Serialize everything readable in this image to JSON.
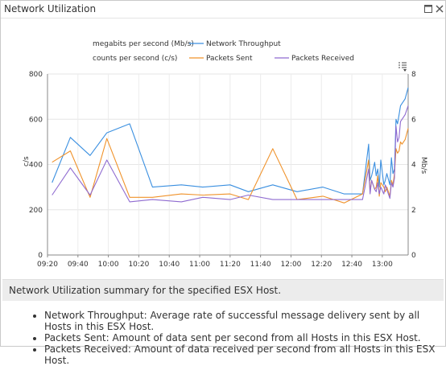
{
  "window": {
    "title": "Network Utilization",
    "icons": [
      "maximize-icon",
      "close-icon"
    ]
  },
  "chart_data": {
    "type": "line",
    "legend": [
      {
        "label": "megabits per second (Mb/s)",
        "series": "Network Throughput",
        "color": "#3a8fe0"
      },
      {
        "label": "counts per second (c/s)",
        "series": "Packets Sent",
        "color": "#f0922a"
      },
      {
        "label": "",
        "series": "Packets Received",
        "color": "#8f6bd0"
      }
    ],
    "ylabel_left": "c/s",
    "ylabel_right": "Mb/s",
    "ylim_left": [
      0,
      800
    ],
    "ylim_right": [
      0,
      8
    ],
    "yticks_left": [
      "0",
      "200",
      "400",
      "600",
      "800"
    ],
    "yticks_right": [
      "0",
      "2",
      "4",
      "6",
      "8"
    ],
    "xticks": [
      "09:20",
      "09:40",
      "10:00",
      "10:20",
      "10:40",
      "11:00",
      "11:20",
      "11:40",
      "12:00",
      "12:20",
      "12:40",
      "13:00"
    ],
    "x_range_minutes": [
      0,
      237
    ],
    "series": [
      {
        "name": "Network Throughput",
        "axis": "right",
        "color": "#3a8fe0",
        "x": [
          3,
          15,
          28,
          39,
          54,
          69,
          88,
          102,
          120,
          132,
          148,
          164,
          181,
          195,
          207,
          211,
          212,
          213,
          215,
          216,
          217,
          218,
          219,
          221,
          222,
          223,
          225,
          226,
          227,
          228,
          229,
          230,
          231,
          232,
          233,
          235,
          237
        ],
        "y": [
          3.2,
          5.2,
          4.4,
          5.4,
          5.8,
          3.0,
          3.1,
          3.0,
          3.1,
          2.8,
          3.1,
          2.8,
          3.0,
          2.7,
          2.7,
          4.9,
          3.3,
          3.5,
          4.1,
          3.5,
          3.8,
          3.0,
          4.2,
          3.1,
          3.3,
          3.6,
          3.1,
          4.3,
          3.6,
          3.8,
          6.0,
          5.8,
          6.2,
          6.6,
          6.7,
          6.9,
          7.4
        ]
      },
      {
        "name": "Packets Sent",
        "axis": "left",
        "color": "#f0922a",
        "x": [
          3,
          15,
          28,
          39,
          54,
          69,
          88,
          102,
          120,
          132,
          148,
          164,
          181,
          195,
          207,
          211,
          212,
          213,
          215,
          216,
          217,
          218,
          219,
          221,
          222,
          223,
          225,
          226,
          227,
          228,
          229,
          230,
          231,
          232,
          233,
          235,
          237
        ],
        "y": [
          410,
          460,
          255,
          515,
          255,
          255,
          270,
          265,
          270,
          245,
          470,
          245,
          260,
          230,
          270,
          420,
          280,
          330,
          290,
          300,
          350,
          260,
          320,
          300,
          280,
          300,
          260,
          330,
          310,
          360,
          470,
          450,
          460,
          500,
          490,
          510,
          560
        ]
      },
      {
        "name": "Packets Received",
        "axis": "left",
        "color": "#8f6bd0",
        "x": [
          3,
          15,
          28,
          39,
          54,
          69,
          88,
          102,
          120,
          132,
          148,
          164,
          181,
          195,
          207,
          211,
          212,
          213,
          215,
          216,
          217,
          218,
          219,
          221,
          222,
          223,
          225,
          226,
          227,
          228,
          229,
          230,
          231,
          232,
          233,
          235,
          237
        ],
        "y": [
          265,
          385,
          265,
          420,
          235,
          245,
          235,
          255,
          245,
          265,
          245,
          245,
          245,
          245,
          245,
          380,
          270,
          330,
          290,
          280,
          320,
          270,
          300,
          270,
          310,
          290,
          250,
          320,
          300,
          340,
          570,
          500,
          520,
          590,
          600,
          620,
          660
        ]
      }
    ],
    "menu_icon": "chart-options-icon"
  },
  "summary": {
    "heading": "Network Utilization summary for the specified ESX Host.",
    "bullets": [
      "Network Throughput: Average rate of successful message delivery sent by all Hosts in this ESX Host.",
      "Packets Sent: Amount of data sent per second from all Hosts in this ESX Host.",
      "Packets Received: Amount of data received per second from all Hosts in this ESX Host."
    ]
  }
}
